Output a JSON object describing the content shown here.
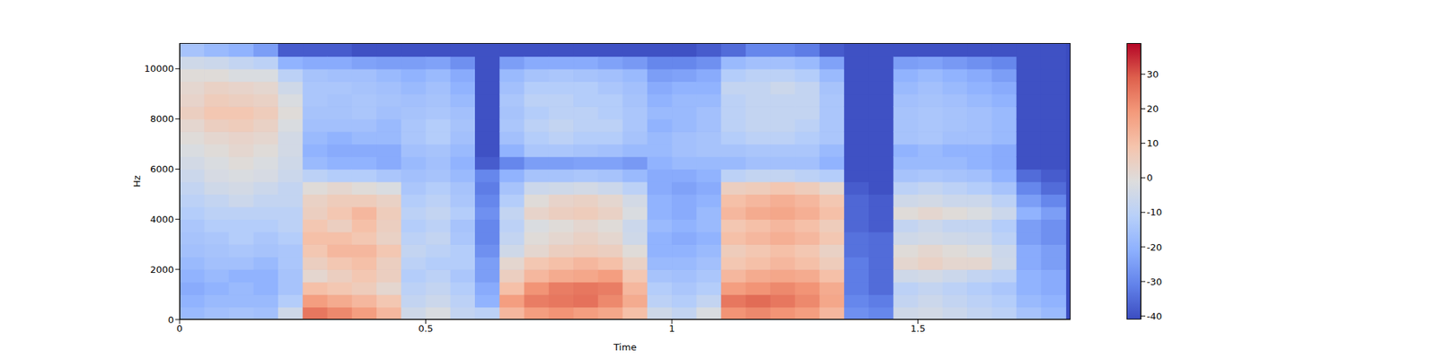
{
  "chart_data": {
    "type": "heatmap",
    "x_label": "Time",
    "y_label": "Hz",
    "xlim": [
      0,
      1.81
    ],
    "xticks": [
      0,
      0.5,
      1,
      1.5
    ],
    "ylim": [
      0,
      11025
    ],
    "yticks": [
      0,
      2000,
      4000,
      6000,
      8000,
      10000
    ],
    "x": [
      0.025,
      0.075,
      0.125,
      0.175,
      0.225,
      0.275,
      0.325,
      0.375,
      0.425,
      0.475,
      0.525,
      0.575,
      0.625,
      0.675,
      0.725,
      0.775,
      0.825,
      0.875,
      0.925,
      0.975,
      1.025,
      1.075,
      1.125,
      1.175,
      1.225,
      1.275,
      1.325,
      1.375,
      1.425,
      1.475,
      1.525,
      1.575,
      1.625,
      1.675,
      1.725,
      1.775
    ],
    "y": [
      250,
      750,
      1250,
      1750,
      2250,
      2750,
      3250,
      3750,
      4250,
      4750,
      5250,
      5750,
      6250,
      6750,
      7250,
      7750,
      8250,
      8750,
      9250,
      9750,
      10250,
      10750
    ],
    "values": [
      [
        -18,
        -20,
        -22,
        -20,
        -18,
        -16,
        -15,
        -14,
        -12,
        -10,
        -8,
        -6,
        -4,
        -2,
        0,
        2,
        5,
        3,
        2,
        0,
        -5,
        -15
      ],
      [
        -16,
        -18,
        -20,
        -18,
        -16,
        -15,
        -14,
        -12,
        -10,
        -8,
        -5,
        -3,
        -2,
        0,
        2,
        5,
        8,
        6,
        4,
        0,
        -6,
        -18
      ],
      [
        -15,
        -18,
        -18,
        -20,
        -16,
        -14,
        -12,
        -12,
        -10,
        -6,
        -4,
        -2,
        0,
        2,
        3,
        6,
        8,
        5,
        3,
        -2,
        -8,
        -20
      ],
      [
        -16,
        -18,
        -20,
        -20,
        -18,
        -15,
        -14,
        -12,
        -10,
        -8,
        -6,
        -3,
        -2,
        0,
        2,
        4,
        6,
        4,
        2,
        -2,
        -10,
        -25
      ],
      [
        -5,
        -12,
        -15,
        -15,
        -14,
        -14,
        -12,
        -10,
        -10,
        -8,
        -8,
        -6,
        -5,
        -4,
        -4,
        -2,
        0,
        -2,
        -5,
        -10,
        -20,
        -38
      ],
      [
        25,
        18,
        10,
        2,
        5,
        8,
        10,
        8,
        5,
        4,
        0,
        -10,
        -18,
        -20,
        -18,
        -16,
        -15,
        -14,
        -14,
        -15,
        -22,
        -38
      ],
      [
        22,
        15,
        8,
        5,
        8,
        12,
        10,
        5,
        8,
        6,
        2,
        -12,
        -20,
        -22,
        -20,
        -16,
        -15,
        -15,
        -14,
        -16,
        -22,
        -38
      ],
      [
        18,
        12,
        6,
        8,
        10,
        12,
        8,
        10,
        12,
        6,
        0,
        -12,
        -20,
        -22,
        -18,
        -16,
        -14,
        -14,
        -15,
        -16,
        -24,
        -40
      ],
      [
        12,
        8,
        2,
        5,
        5,
        8,
        4,
        5,
        6,
        4,
        -2,
        -14,
        -22,
        -22,
        -18,
        -18,
        -16,
        -15,
        -16,
        -18,
        -25,
        -40
      ],
      [
        -5,
        -8,
        -10,
        -12,
        -10,
        -8,
        -10,
        -12,
        -10,
        -12,
        -14,
        -16,
        -18,
        -16,
        -14,
        -14,
        -15,
        -16,
        -18,
        -20,
        -25,
        -40
      ],
      [
        -2,
        -6,
        -8,
        -10,
        -12,
        -10,
        -8,
        -10,
        -8,
        -10,
        -12,
        -15,
        -16,
        -15,
        -12,
        -12,
        -14,
        -15,
        -16,
        -18,
        -24,
        -40
      ],
      [
        -8,
        -10,
        -12,
        -14,
        -12,
        -12,
        -14,
        -15,
        -12,
        -14,
        -15,
        -18,
        -20,
        -18,
        -16,
        -15,
        -16,
        -18,
        -20,
        -22,
        -28,
        -40
      ],
      [
        -10,
        -20,
        -22,
        -25,
        -25,
        -28,
        -30,
        -30,
        -28,
        -30,
        -32,
        -30,
        -38,
        -40,
        -40,
        -40,
        -40,
        -40,
        -40,
        -40,
        -40,
        -40
      ],
      [
        12,
        18,
        10,
        5,
        2,
        -5,
        -8,
        -10,
        -8,
        -12,
        -15,
        -20,
        -30,
        -20,
        -16,
        -14,
        -15,
        -14,
        -16,
        -18,
        -25,
        -40
      ],
      [
        18,
        24,
        20,
        12,
        8,
        2,
        0,
        -2,
        3,
        0,
        -6,
        -15,
        -25,
        -14,
        -12,
        -10,
        -12,
        -10,
        -12,
        -15,
        -22,
        -40
      ],
      [
        20,
        25,
        24,
        15,
        10,
        5,
        2,
        0,
        5,
        3,
        -5,
        -15,
        -25,
        -14,
        -10,
        -8,
        -10,
        -10,
        -12,
        -14,
        -22,
        -40
      ],
      [
        18,
        26,
        25,
        16,
        12,
        6,
        4,
        2,
        6,
        4,
        -4,
        -14,
        -24,
        -15,
        -12,
        -10,
        -10,
        -12,
        -12,
        -15,
        -22,
        -40
      ],
      [
        16,
        22,
        24,
        18,
        10,
        5,
        2,
        0,
        4,
        2,
        -6,
        -15,
        -24,
        -16,
        -12,
        -10,
        -12,
        -12,
        -14,
        -16,
        -24,
        -40
      ],
      [
        10,
        15,
        12,
        8,
        4,
        0,
        -5,
        -6,
        -2,
        -4,
        -10,
        -18,
        -26,
        -18,
        -15,
        -14,
        -14,
        -15,
        -16,
        -18,
        -26,
        -40
      ],
      [
        -5,
        -10,
        -12,
        -15,
        -18,
        -20,
        -20,
        -18,
        -20,
        -20,
        -22,
        -22,
        -20,
        -18,
        -18,
        -20,
        -18,
        -20,
        -22,
        -25,
        -30,
        -40
      ],
      [
        -8,
        -12,
        -14,
        -16,
        -18,
        -20,
        -22,
        -20,
        -22,
        -22,
        -24,
        -22,
        -18,
        -16,
        -16,
        -18,
        -18,
        -18,
        -20,
        -24,
        -30,
        -40
      ],
      [
        -2,
        -8,
        -12,
        -14,
        -16,
        -18,
        -20,
        -18,
        -18,
        -20,
        -22,
        -20,
        -18,
        -15,
        -15,
        -16,
        -16,
        -18,
        -20,
        -22,
        -28,
        -38
      ],
      [
        20,
        25,
        18,
        12,
        8,
        6,
        10,
        8,
        12,
        10,
        5,
        -10,
        -18,
        -15,
        -12,
        -10,
        -10,
        -10,
        -8,
        -12,
        -18,
        -35
      ],
      [
        22,
        27,
        20,
        15,
        10,
        8,
        12,
        10,
        15,
        12,
        6,
        -8,
        -16,
        -14,
        -10,
        -8,
        -8,
        -8,
        -8,
        -10,
        -16,
        -30
      ],
      [
        20,
        25,
        22,
        16,
        12,
        10,
        14,
        12,
        16,
        14,
        8,
        -8,
        -16,
        -14,
        -10,
        -8,
        -8,
        -8,
        -6,
        -10,
        -16,
        -30
      ],
      [
        18,
        22,
        20,
        15,
        10,
        8,
        12,
        10,
        14,
        12,
        6,
        -10,
        -16,
        -14,
        -12,
        -10,
        -8,
        -8,
        -8,
        -12,
        -18,
        -32
      ],
      [
        12,
        16,
        15,
        10,
        6,
        4,
        8,
        6,
        10,
        8,
        2,
        -12,
        -20,
        -18,
        -14,
        -14,
        -14,
        -14,
        -15,
        -18,
        -24,
        -38
      ],
      [
        -28,
        -30,
        -32,
        -32,
        -32,
        -34,
        -34,
        -36,
        -36,
        -36,
        -38,
        -40,
        -40,
        -40,
        -40,
        -40,
        -40,
        -40,
        -40,
        -40,
        -40,
        -40
      ],
      [
        -30,
        -32,
        -35,
        -35,
        -35,
        -35,
        -35,
        -38,
        -38,
        -38,
        -40,
        -40,
        -40,
        -40,
        -40,
        -40,
        -40,
        -40,
        -40,
        -40,
        -40,
        -40
      ],
      [
        -5,
        -8,
        -10,
        -5,
        2,
        0,
        -5,
        -8,
        0,
        -5,
        -10,
        -15,
        -18,
        -20,
        -15,
        -15,
        -15,
        -16,
        -18,
        -20,
        -25,
        -40
      ],
      [
        -4,
        -6,
        -8,
        -4,
        4,
        2,
        -4,
        -6,
        2,
        -4,
        -8,
        -14,
        -18,
        -18,
        -14,
        -14,
        -14,
        -15,
        -16,
        -18,
        -24,
        -40
      ],
      [
        -6,
        -8,
        -10,
        -6,
        2,
        0,
        -5,
        -8,
        0,
        -6,
        -10,
        -15,
        -18,
        -20,
        -16,
        -15,
        -15,
        -16,
        -18,
        -20,
        -26,
        -40
      ],
      [
        -8,
        -10,
        -12,
        -8,
        2,
        -2,
        -6,
        -8,
        -2,
        -6,
        -12,
        -16,
        -20,
        -20,
        -16,
        -16,
        -16,
        -18,
        -20,
        -22,
        -28,
        -40
      ],
      [
        -10,
        -12,
        -14,
        -10,
        -5,
        -6,
        -10,
        -12,
        -6,
        -10,
        -15,
        -20,
        -22,
        -22,
        -18,
        -18,
        -18,
        -20,
        -22,
        -25,
        -30,
        -40
      ],
      [
        -15,
        -18,
        -20,
        -20,
        -22,
        -22,
        -25,
        -25,
        -20,
        -25,
        -30,
        -35,
        -40,
        -40,
        -40,
        -40,
        -40,
        -40,
        -40,
        -40,
        -40,
        -40
      ],
      [
        -18,
        -20,
        -22,
        -22,
        -25,
        -25,
        -28,
        -28,
        -25,
        -30,
        -35,
        -38,
        -40,
        -40,
        -40,
        -40,
        -40,
        -40,
        -40,
        -40,
        -40,
        -40
      ]
    ],
    "colorbar": {
      "range": [
        -41,
        39
      ],
      "ticks": [
        -40,
        -30,
        -20,
        -10,
        0,
        10,
        20,
        30
      ]
    }
  }
}
